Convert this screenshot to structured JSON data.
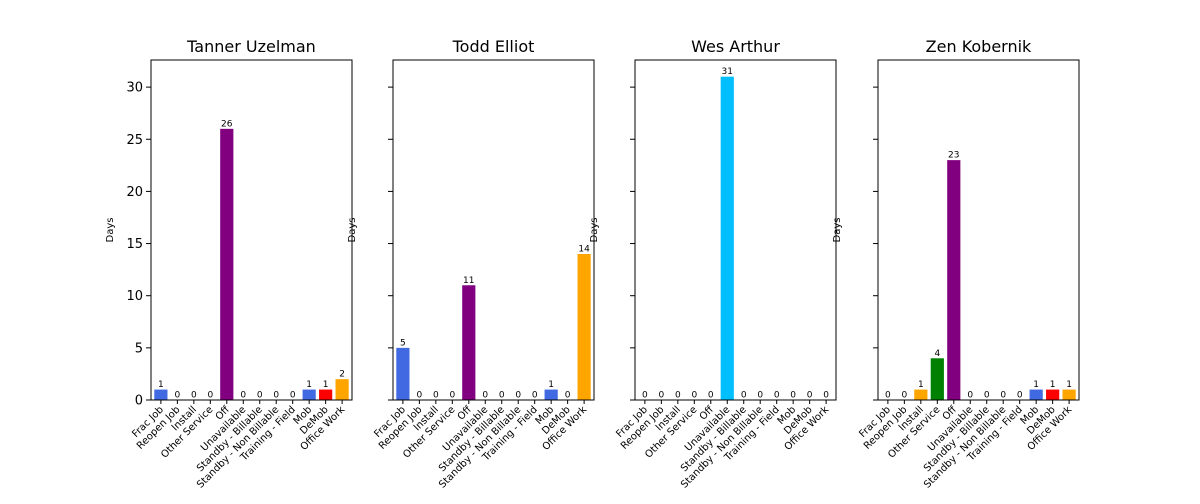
{
  "chart_data": {
    "type": "bar",
    "ylabel": "Days",
    "ylim": [
      0,
      32.6
    ],
    "yticks": [
      0,
      5,
      10,
      15,
      20,
      25,
      30
    ],
    "shared_y": true,
    "categories": [
      "Frac Job",
      "Reopen Job",
      "Install",
      "Other Service",
      "Off",
      "Unavailable",
      "Standby - Billable",
      "Standby - Non Billable",
      "Training - Field",
      "Mob",
      "DeMob",
      "Office Work"
    ],
    "category_colors": [
      "#4169e1",
      "#4169e1",
      "#ffa500",
      "#008000",
      "#800080",
      "#00bfff",
      "#00bfff",
      "#00bfff",
      "#00bfff",
      "#4169e1",
      "#ff0000",
      "#ffa500"
    ],
    "panels": [
      {
        "title": "Tanner Uzelman",
        "values": [
          1,
          0,
          0,
          0,
          26,
          0,
          0,
          0,
          0,
          1,
          1,
          2
        ]
      },
      {
        "title": "Todd Elliot",
        "values": [
          5,
          0,
          0,
          0,
          11,
          0,
          0,
          0,
          0,
          1,
          0,
          14
        ]
      },
      {
        "title": "Wes Arthur",
        "values": [
          0,
          0,
          0,
          0,
          0,
          31,
          0,
          0,
          0,
          0,
          0,
          0
        ]
      },
      {
        "title": "Zen Kobernik",
        "values": [
          0,
          0,
          1,
          4,
          23,
          0,
          0,
          0,
          0,
          1,
          1,
          1
        ]
      }
    ]
  }
}
